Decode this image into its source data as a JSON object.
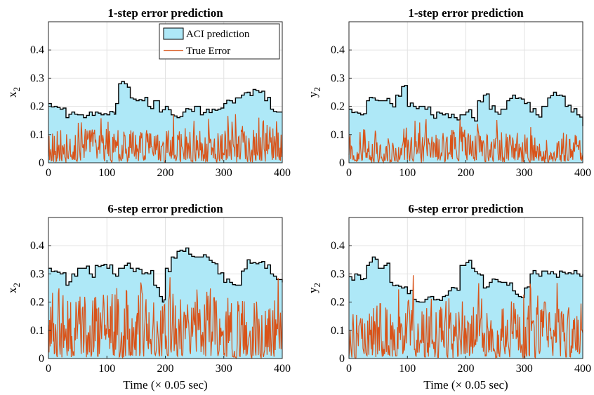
{
  "chart_data": [
    {
      "type": "area",
      "title": "1-step error prediction",
      "xlabel": "",
      "ylabel": "x",
      "ylabel_sub": "2",
      "xlim": [
        0,
        400
      ],
      "ylim": [
        0,
        0.5
      ],
      "xticks": [
        0,
        100,
        200,
        300,
        400
      ],
      "yticks": [
        0,
        0.1,
        0.2,
        0.3,
        0.4
      ],
      "ytick_labels": [
        "0",
        "0.1",
        "0.2",
        "0.3",
        "0.4"
      ],
      "grid": true,
      "legend": {
        "position": "top-right",
        "entries": [
          "ACI prediction",
          "True Error"
        ]
      },
      "series": [
        {
          "name": "ACI prediction",
          "kind": "band",
          "color": "#aee8f7",
          "x": [
            0,
            10,
            20,
            30,
            40,
            50,
            60,
            70,
            80,
            90,
            100,
            110,
            115,
            120,
            130,
            140,
            150,
            160,
            170,
            180,
            190,
            200,
            210,
            220,
            230,
            240,
            250,
            260,
            270,
            280,
            290,
            300,
            310,
            320,
            330,
            340,
            350,
            360,
            370,
            380,
            390,
            400
          ],
          "values": [
            0.21,
            0.2,
            0.19,
            0.16,
            0.18,
            0.17,
            0.16,
            0.18,
            0.18,
            0.17,
            0.17,
            0.18,
            0.21,
            0.28,
            0.28,
            0.23,
            0.22,
            0.22,
            0.2,
            0.22,
            0.18,
            0.2,
            0.17,
            0.16,
            0.18,
            0.19,
            0.2,
            0.17,
            0.19,
            0.19,
            0.19,
            0.21,
            0.22,
            0.23,
            0.24,
            0.25,
            0.26,
            0.25,
            0.22,
            0.19,
            0.18,
            0.18
          ]
        },
        {
          "name": "True Error",
          "kind": "line",
          "color": "#d95319",
          "generator": {
            "seed": 11,
            "n": 401,
            "max": 0.16,
            "spike_chance": 0.06,
            "spike_max": 0.24
          }
        }
      ]
    },
    {
      "type": "area",
      "title": "1-step error prediction",
      "xlabel": "",
      "ylabel": "y",
      "ylabel_sub": "2",
      "xlim": [
        0,
        400
      ],
      "ylim": [
        0,
        0.5
      ],
      "xticks": [
        0,
        100,
        200,
        300,
        400
      ],
      "yticks": [
        0,
        0.1,
        0.2,
        0.3,
        0.4
      ],
      "ytick_labels": [
        "0",
        "0.1",
        "0.2",
        "0.3",
        "0.4"
      ],
      "grid": true,
      "series": [
        {
          "name": "ACI prediction",
          "kind": "band",
          "color": "#aee8f7",
          "x": [
            0,
            10,
            20,
            30,
            40,
            50,
            60,
            70,
            80,
            90,
            100,
            110,
            120,
            130,
            140,
            150,
            160,
            170,
            180,
            190,
            200,
            210,
            220,
            230,
            240,
            250,
            260,
            270,
            280,
            290,
            300,
            310,
            320,
            330,
            340,
            350,
            360,
            370,
            380,
            390,
            400
          ],
          "values": [
            0.19,
            0.18,
            0.17,
            0.22,
            0.23,
            0.22,
            0.22,
            0.21,
            0.24,
            0.27,
            0.2,
            0.2,
            0.2,
            0.19,
            0.17,
            0.18,
            0.17,
            0.16,
            0.16,
            0.17,
            0.18,
            0.16,
            0.22,
            0.24,
            0.19,
            0.18,
            0.19,
            0.22,
            0.24,
            0.23,
            0.21,
            0.18,
            0.17,
            0.2,
            0.23,
            0.25,
            0.24,
            0.2,
            0.18,
            0.17,
            0.13
          ]
        },
        {
          "name": "True Error",
          "kind": "line",
          "color": "#d95319",
          "generator": {
            "seed": 23,
            "n": 401,
            "max": 0.14,
            "spike_chance": 0.05,
            "spike_max": 0.2
          }
        }
      ]
    },
    {
      "type": "area",
      "title": "6-step error prediction",
      "xlabel": "Time (× 0.05 sec)",
      "ylabel": "x",
      "ylabel_sub": "2",
      "xlim": [
        0,
        400
      ],
      "ylim": [
        0,
        0.5
      ],
      "xticks": [
        0,
        100,
        200,
        300,
        400
      ],
      "yticks": [
        0,
        0.1,
        0.2,
        0.3,
        0.4
      ],
      "ytick_labels": [
        "0",
        "0.1",
        "0.2",
        "0.3",
        "0.4"
      ],
      "grid": true,
      "series": [
        {
          "name": "ACI prediction",
          "kind": "band",
          "color": "#aee8f7",
          "x": [
            0,
            10,
            20,
            30,
            40,
            50,
            60,
            70,
            80,
            90,
            100,
            110,
            120,
            130,
            140,
            150,
            160,
            170,
            180,
            190,
            195,
            200,
            210,
            220,
            230,
            240,
            250,
            260,
            270,
            280,
            290,
            300,
            310,
            320,
            330,
            340,
            350,
            360,
            370,
            380,
            390,
            400
          ],
          "values": [
            0.32,
            0.31,
            0.3,
            0.26,
            0.3,
            0.32,
            0.32,
            0.3,
            0.33,
            0.33,
            0.32,
            0.3,
            0.32,
            0.33,
            0.32,
            0.32,
            0.3,
            0.3,
            0.26,
            0.22,
            0.2,
            0.32,
            0.36,
            0.38,
            0.38,
            0.37,
            0.36,
            0.36,
            0.36,
            0.34,
            0.3,
            0.27,
            0.27,
            0.26,
            0.31,
            0.35,
            0.34,
            0.34,
            0.32,
            0.3,
            0.28,
            0.27
          ]
        },
        {
          "name": "True Error",
          "kind": "line",
          "color": "#d95319",
          "generator": {
            "seed": 37,
            "n": 401,
            "max": 0.3,
            "spike_chance": 0.04,
            "spike_max": 0.38
          }
        }
      ]
    },
    {
      "type": "area",
      "title": "6-step error prediction",
      "xlabel": "Time (× 0.05 sec)",
      "ylabel": "y",
      "ylabel_sub": "2",
      "xlim": [
        0,
        400
      ],
      "ylim": [
        0,
        0.5
      ],
      "xticks": [
        0,
        100,
        200,
        300,
        400
      ],
      "yticks": [
        0,
        0.1,
        0.2,
        0.3,
        0.4
      ],
      "ytick_labels": [
        "0",
        "0.1",
        "0.2",
        "0.3",
        "0.4"
      ],
      "grid": true,
      "series": [
        {
          "name": "ACI prediction",
          "kind": "band",
          "color": "#aee8f7",
          "x": [
            0,
            10,
            20,
            30,
            40,
            50,
            60,
            70,
            80,
            90,
            100,
            110,
            120,
            130,
            140,
            150,
            160,
            170,
            180,
            190,
            200,
            210,
            220,
            230,
            240,
            250,
            260,
            270,
            280,
            290,
            300,
            310,
            320,
            330,
            340,
            350,
            360,
            370,
            380,
            390,
            400
          ],
          "values": [
            0.29,
            0.3,
            0.28,
            0.33,
            0.36,
            0.32,
            0.33,
            0.27,
            0.26,
            0.25,
            0.23,
            0.21,
            0.2,
            0.21,
            0.22,
            0.21,
            0.22,
            0.24,
            0.25,
            0.33,
            0.34,
            0.32,
            0.3,
            0.25,
            0.27,
            0.28,
            0.27,
            0.26,
            0.24,
            0.22,
            0.25,
            0.3,
            0.3,
            0.31,
            0.3,
            0.3,
            0.31,
            0.3,
            0.3,
            0.3,
            0.3
          ]
        },
        {
          "name": "True Error",
          "kind": "line",
          "color": "#d95319",
          "generator": {
            "seed": 53,
            "n": 401,
            "max": 0.26,
            "spike_chance": 0.04,
            "spike_max": 0.4
          }
        }
      ]
    }
  ]
}
